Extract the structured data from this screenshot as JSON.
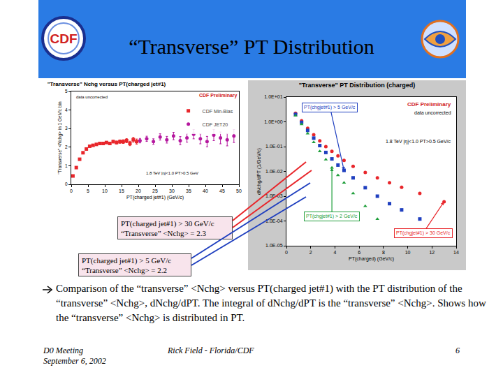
{
  "header": {
    "title": "“Transverse” PT Distribution",
    "logo_left": "CDF"
  },
  "chart_data": [
    {
      "type": "scatter",
      "title": "\"Transverse\" Nchg versus PT(charged jet#1)",
      "x_label": "PT(charged jet#1) (GeV/c)",
      "y_label": "\"Transverse\" <Nchg> in 1 GeV/c bin",
      "annotations": [
        "CDF Preliminary",
        "data uncorrected",
        "1.8 TeV |η|<1.0 PT>0.5 GeV"
      ],
      "xlim": [
        0,
        50
      ],
      "xticks": [
        0,
        5,
        10,
        15,
        20,
        25,
        30,
        35,
        40,
        45,
        50
      ],
      "ylim": [
        0,
        5
      ],
      "yticks": [
        0,
        1,
        2,
        3,
        4,
        5
      ],
      "grid": false,
      "legend": "top right",
      "series": [
        {
          "name": "CDF Min-Bias",
          "color": "#e8262b",
          "marker": "square",
          "x": [
            0.5,
            1.5,
            2.5,
            3.5,
            4.5,
            5.5,
            6.5,
            7.5,
            8.5,
            9.5,
            10.5,
            11.5,
            12.5,
            13.5,
            14.5,
            15.5,
            16.5,
            17.5,
            18.5,
            19.5
          ],
          "values": [
            0.45,
            0.9,
            1.35,
            1.7,
            1.9,
            2.05,
            2.1,
            2.15,
            2.2,
            2.2,
            2.25,
            2.2,
            2.3,
            2.25,
            2.3,
            2.3,
            2.35,
            2.2,
            2.4,
            2.3
          ],
          "errors": [
            0.01,
            0.01,
            0.01,
            0.015,
            0.02,
            0.02,
            0.025,
            0.03,
            0.035,
            0.04,
            0.05,
            0.06,
            0.07,
            0.08,
            0.09,
            0.1,
            0.11,
            0.12,
            0.13,
            0.14
          ]
        },
        {
          "name": "CDF JET20",
          "color": "#b5179e",
          "marker": "circle",
          "x": [
            20.5,
            22.5,
            24.5,
            26.5,
            28.5,
            30.5,
            32.5,
            34.5,
            36.5,
            38.5,
            40.5,
            42.5,
            44.5,
            46.5,
            48.5
          ],
          "values": [
            2.35,
            2.45,
            2.3,
            2.55,
            2.4,
            2.6,
            2.35,
            2.5,
            2.7,
            2.45,
            2.3,
            2.65,
            2.5,
            2.4,
            2.6
          ],
          "errors": [
            0.12,
            0.14,
            0.15,
            0.17,
            0.18,
            0.2,
            0.22,
            0.23,
            0.25,
            0.27,
            0.28,
            0.3,
            0.32,
            0.33,
            0.35
          ]
        }
      ]
    },
    {
      "type": "scatter",
      "title": "\"Transverse\" PT Distribution (charged)",
      "x_label": "PT(charged) (GeV/c)",
      "y_label": "dNchg/dPT (1/GeV/c)",
      "annotations": [
        "CDF Preliminary",
        "data uncorrected",
        "1.8 TeV |η|<1.0 PT>0.5 GeV/c"
      ],
      "log": "y",
      "grid": false,
      "xlim": [
        0,
        14
      ],
      "xticks": [
        0,
        2,
        4,
        6,
        8,
        10,
        12,
        14
      ],
      "ylim": [
        1e-05,
        10
      ],
      "yticks": [
        {
          "value": 1e-05,
          "label": "1.0E-05"
        },
        {
          "value": 0.0001,
          "label": "1.0E-04"
        },
        {
          "value": 0.001,
          "label": "1.0E-03"
        },
        {
          "value": 0.01,
          "label": "1.0E-02"
        },
        {
          "value": 0.1,
          "label": "1.0E-01"
        },
        {
          "value": 1,
          "label": "1.0E+00"
        },
        {
          "value": 10,
          "label": "1.0E+01"
        }
      ],
      "x": [
        0.75,
        1.25,
        1.75,
        2.25,
        2.75,
        3.25,
        3.75,
        4.25,
        4.75,
        5.5,
        6.5,
        7.5,
        8.5,
        9.5,
        11,
        13
      ],
      "series": [
        {
          "name": "PT(chgjet#1) > 30 GeV/c",
          "color": "#e8262b",
          "marker": "circle",
          "values": [
            2.2,
            1.1,
            0.55,
            0.3,
            0.17,
            0.1,
            0.065,
            0.042,
            0.028,
            0.016,
            0.009,
            0.0055,
            0.0035,
            0.0023,
            0.0013,
            0.0006
          ]
        },
        {
          "name": "PT(chgjet#1) > 5 GeV/c",
          "color": "#1f3fbf",
          "marker": "square",
          "values": [
            2.0,
            0.95,
            0.45,
            0.22,
            0.11,
            0.058,
            0.032,
            0.018,
            0.011,
            0.0055,
            0.0022,
            0.001,
            0.0005,
            0.00028,
            0.00012,
            null
          ]
        },
        {
          "name": "PT(chgjet#1) > 2 GeV/c",
          "color": "#1e9e3a",
          "marker": "triangle-up",
          "values": [
            1.8,
            0.8,
            0.34,
            0.15,
            0.065,
            0.03,
            0.014,
            0.007,
            0.0035,
            0.0013,
            0.0004,
            0.00012,
            null,
            null,
            null,
            null
          ]
        }
      ]
    }
  ],
  "callouts": [
    {
      "lines": [
        "PT(charged jet#1) > 30 GeV/c",
        "“Transverse” <Nchg> = 2.3"
      ],
      "color": "#e8262b"
    },
    {
      "lines": [
        "PT(charged jet#1) > 5 GeV/c",
        "“Transverse” <Nchg> = 2.2"
      ],
      "color": "#1f3fbf"
    }
  ],
  "bullet": "Comparison of the “transverse” <Nchg> versus PT(charged jet#1) with the PT distribution of the “transverse” <Nchg>, dNchg/dPT. The integral of dNchg/dPT is the “transverse” <Nchg>. Shows how the “transverse” <Nchg> is distributed in PT.",
  "footer": {
    "left": [
      "D0 Meeting",
      "September 6, 2002"
    ],
    "center": "Rick Field - Florida/CDF",
    "page": "6"
  }
}
